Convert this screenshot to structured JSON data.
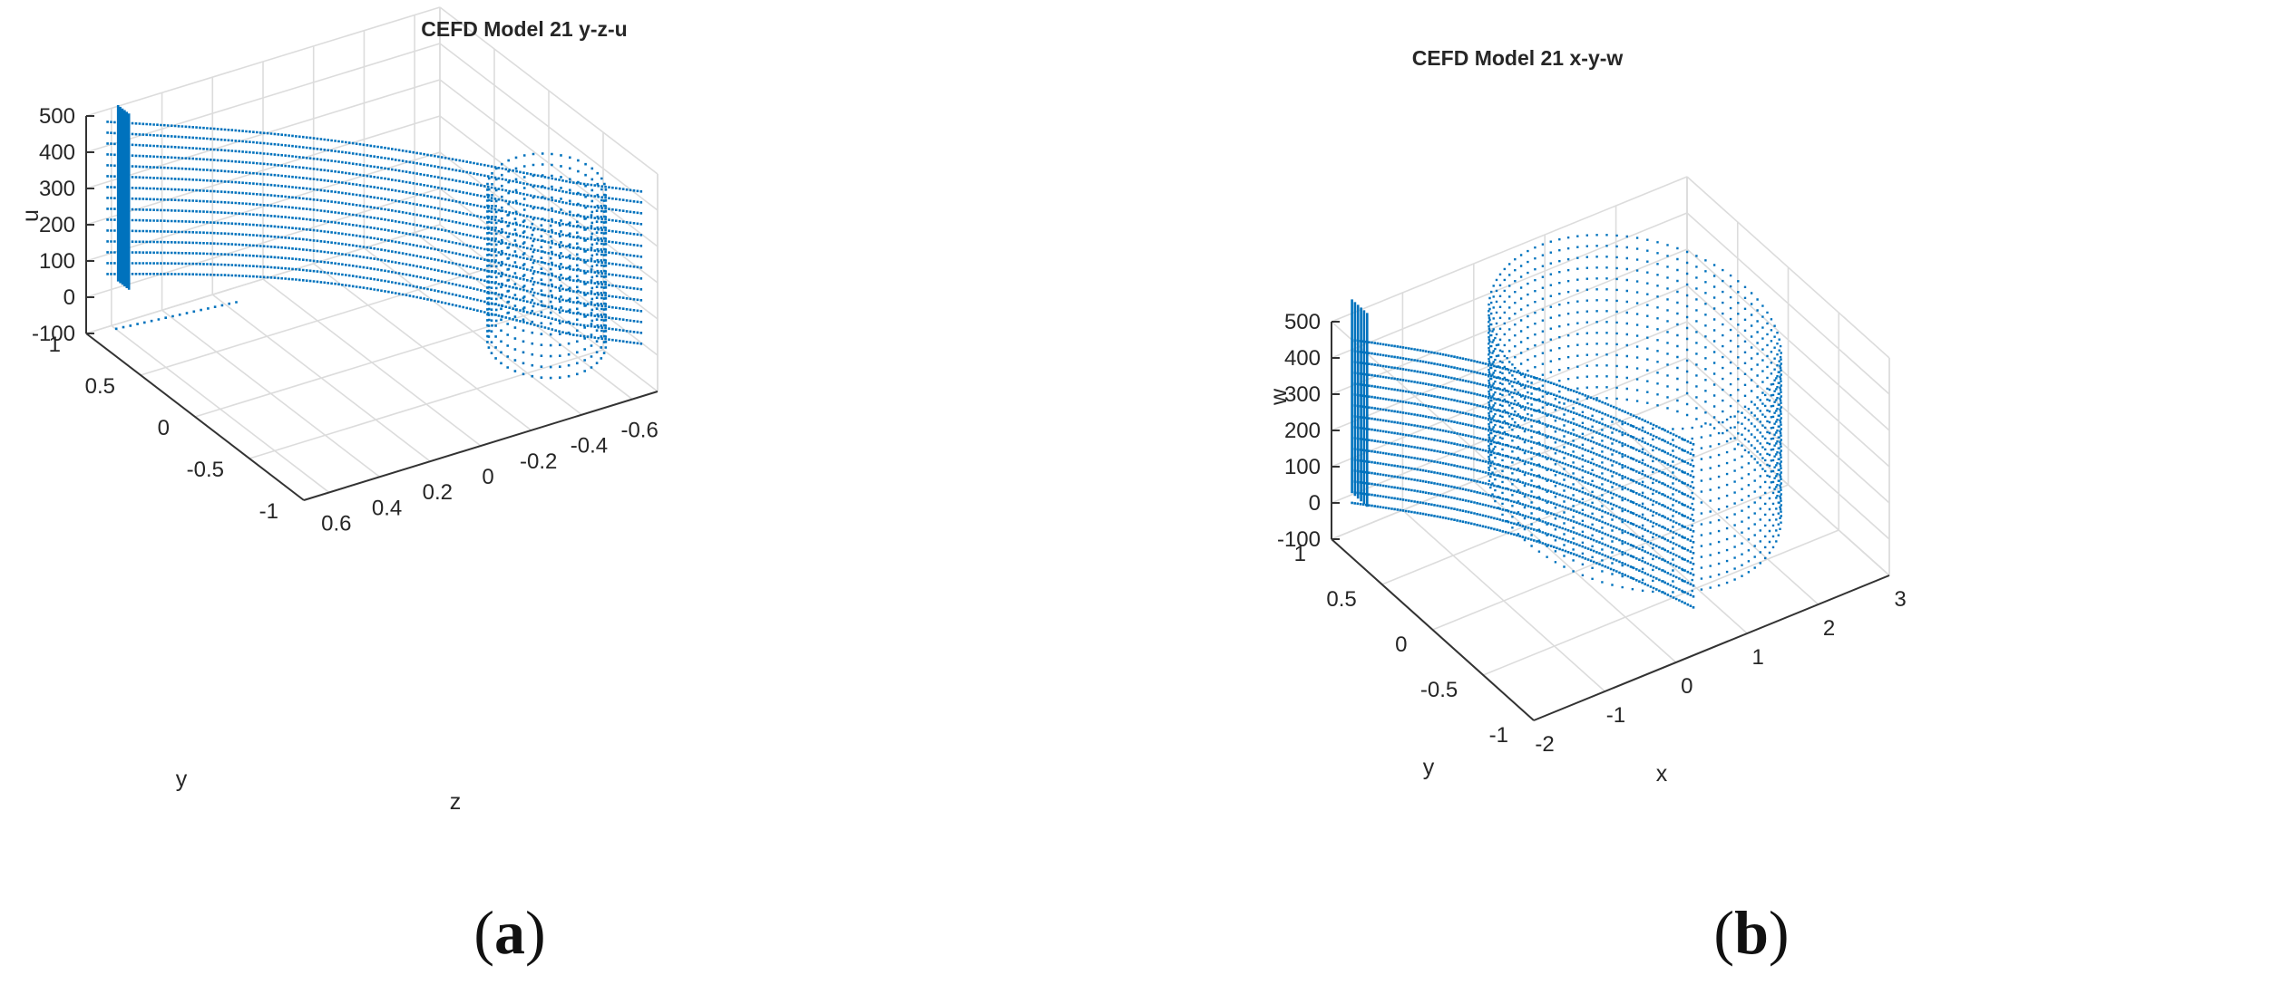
{
  "chart_data": [
    {
      "type": "scatter",
      "projection": "3d",
      "title": "CEFD Model 21 y-z-u",
      "caption": "(a)",
      "marker_color": "#0072bd",
      "grid": true,
      "axes": {
        "u": {
          "label": "u",
          "lim": [
            -100,
            500
          ],
          "ticks": [
            "500",
            "400",
            "300",
            "200",
            "100",
            "0",
            "-100"
          ]
        },
        "y": {
          "label": "y",
          "lim": [
            -1,
            1
          ],
          "ticks": [
            "1",
            "0.5",
            "0",
            "-0.5",
            "-1"
          ]
        },
        "z": {
          "label": "z",
          "lim": [
            -0.7,
            0.7
          ],
          "ticks": [
            "0.6",
            "0.4",
            "0.2",
            "0",
            "-0.2",
            "-0.4",
            "-0.6"
          ]
        }
      },
      "series": [
        {
          "description_values": {
            "u_levels": [
              50,
              80,
              110,
              140,
              170,
              200,
              230,
              260,
              290,
              320,
              350,
              380,
              410,
              440,
              470
            ],
            "y_range": [
              -1,
              1
            ],
            "z_range": [
              -0.65,
              0.6
            ]
          }
        }
      ]
    },
    {
      "type": "scatter",
      "projection": "3d",
      "title": "CEFD Model 21 x-y-w",
      "caption": "(b)",
      "marker_color": "#0072bd",
      "grid": true,
      "axes": {
        "w": {
          "label": "w",
          "lim": [
            -100,
            500
          ],
          "ticks": [
            "500",
            "400",
            "300",
            "200",
            "100",
            "0",
            "-100"
          ]
        },
        "y": {
          "label": "y",
          "lim": [
            -1,
            1
          ],
          "ticks": [
            "1",
            "0.5",
            "0",
            "-0.5",
            "-1"
          ]
        },
        "x": {
          "label": "x",
          "lim": [
            -2,
            3
          ],
          "ticks": [
            "-2",
            "-1",
            "0",
            "1",
            "2",
            "3"
          ]
        }
      },
      "series": [
        {
          "description_values": {
            "w_levels": [
              0,
              30,
              60,
              90,
              120,
              150,
              180,
              210,
              240,
              270,
              300,
              330,
              360,
              390,
              420,
              450
            ],
            "y_range": [
              -1,
              1
            ],
            "x_range": [
              -1.8,
              2.5
            ]
          }
        }
      ]
    }
  ]
}
